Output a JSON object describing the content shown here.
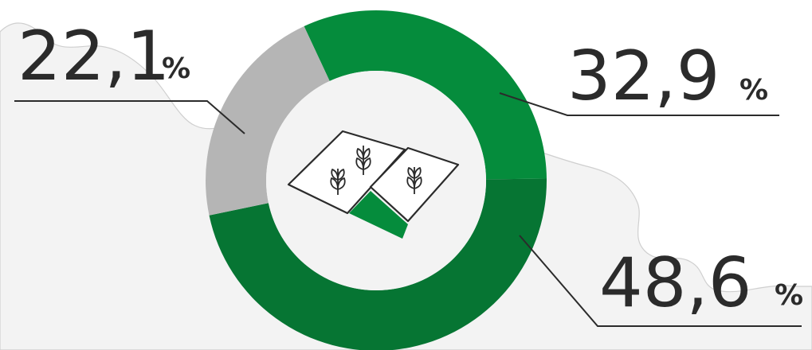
{
  "colors": {
    "background": "#ffffff",
    "map_fill": "#f3f3f3",
    "map_stroke": "#cfcfcf",
    "green": "#058c3c",
    "dark_green": "#067533",
    "gray": "#b5b5b5",
    "text": "#2b2b2b",
    "leader": "#2b2b2b"
  },
  "center_icon": "farm-fields-with-wheat-icon",
  "chart_data": {
    "type": "pie",
    "donut": true,
    "slices": [
      {
        "value": 32.9,
        "label": "32,9",
        "unit": "%",
        "color": "#058c3c"
      },
      {
        "value": 48.6,
        "label": "48,6",
        "unit": "%",
        "color": "#067533"
      },
      {
        "value": 22.1,
        "label": "22,1",
        "unit": "%",
        "color": "#b5b5b5"
      }
    ]
  }
}
